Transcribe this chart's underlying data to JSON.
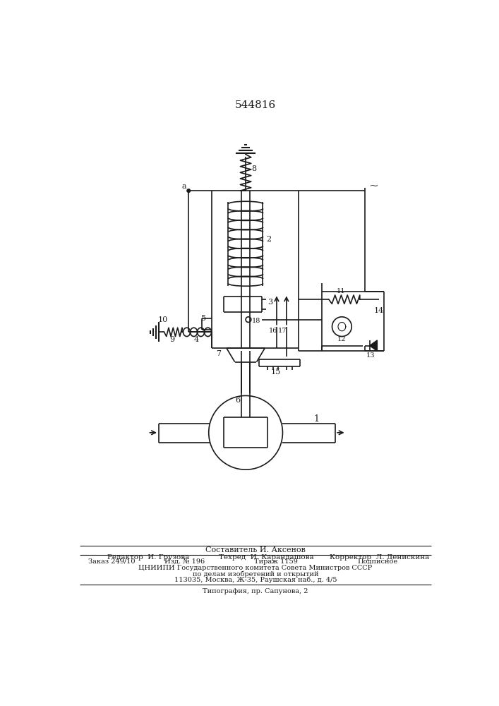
{
  "title": "544816",
  "bg_color": "#ffffff",
  "line_color": "#1a1a1a",
  "lw": 1.2,
  "composer_text": "Составитель И. Аксенов",
  "editor_text": "Редактор  И. Грузова",
  "techred_text": "Техред  И. Карандашова",
  "corrector_text": "Корректор  Л. Денискина",
  "order_text": "Заказ 249/10",
  "izdno_text": "Изд. № 196",
  "tirazh_text": "Тираж 1159",
  "podpisnoe_text": "Подписное",
  "cniip_text": "ЦНИИПИ Государственного комитета Совета Министров СССР",
  "dela_text": "по делам изобретений и открытий",
  "addr_text": "113035, Москва, Ж-35, Раушская наб., д. 4/5",
  "tipogr_text": "Типография, пр. Сапунова, 2"
}
